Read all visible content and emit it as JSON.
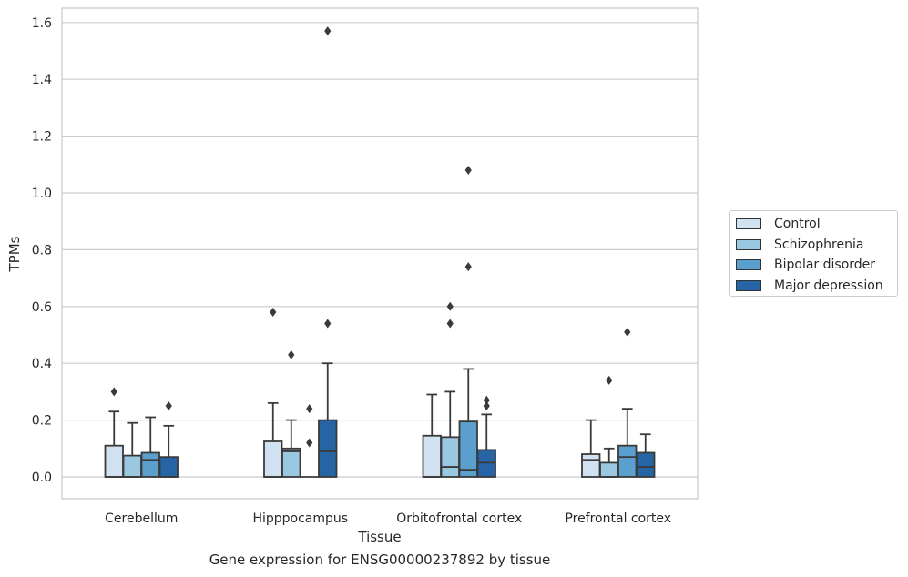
{
  "chart_data": {
    "type": "boxplot",
    "title": "",
    "caption": "Gene expression for ENSG00000237892 by tissue",
    "xlabel": "Tissue",
    "ylabel": "TPMs",
    "ylim": [
      -0.075,
      1.65
    ],
    "yticks": [
      "0.0",
      "0.2",
      "0.4",
      "0.6",
      "0.8",
      "1.0",
      "1.2",
      "1.4",
      "1.6"
    ],
    "grid": "horizontal",
    "legend_position": "right",
    "categories": [
      "Cerebellum",
      "Hipppocampus",
      "Orbitofrontal cortex",
      "Prefrontal cortex"
    ],
    "series": [
      {
        "name": "Control",
        "color": "#d0e1f2",
        "boxes": [
          {
            "whislo": 0.0,
            "q1": 0.0,
            "med": 0.0,
            "q3": 0.11,
            "whishi": 0.23,
            "fliers": [
              0.3
            ]
          },
          {
            "whislo": 0.0,
            "q1": 0.0,
            "med": 0.0,
            "q3": 0.125,
            "whishi": 0.26,
            "fliers": [
              0.58
            ]
          },
          {
            "whislo": 0.0,
            "q1": 0.0,
            "med": 0.0,
            "q3": 0.145,
            "whishi": 0.29,
            "fliers": []
          },
          {
            "whislo": 0.0,
            "q1": 0.0,
            "med": 0.06,
            "q3": 0.08,
            "whishi": 0.2,
            "fliers": []
          }
        ]
      },
      {
        "name": "Schizophrenia",
        "color": "#9ac8e0",
        "boxes": [
          {
            "whislo": 0.0,
            "q1": 0.0,
            "med": 0.0,
            "q3": 0.075,
            "whishi": 0.19,
            "fliers": []
          },
          {
            "whislo": 0.0,
            "q1": 0.0,
            "med": 0.09,
            "q3": 0.1,
            "whishi": 0.2,
            "fliers": [
              0.43
            ]
          },
          {
            "whislo": 0.0,
            "q1": 0.0,
            "med": 0.035,
            "q3": 0.14,
            "whishi": 0.3,
            "fliers": [
              0.54,
              0.6
            ]
          },
          {
            "whislo": 0.0,
            "q1": 0.0,
            "med": 0.0,
            "q3": 0.05,
            "whishi": 0.1,
            "fliers": [
              0.34
            ]
          }
        ]
      },
      {
        "name": "Bipolar disorder",
        "color": "#5a9fcd",
        "boxes": [
          {
            "whislo": 0.0,
            "q1": 0.0,
            "med": 0.06,
            "q3": 0.085,
            "whishi": 0.21,
            "fliers": []
          },
          {
            "whislo": 0.0,
            "q1": 0.0,
            "med": 0.0,
            "q3": 0.0,
            "whishi": 0.0,
            "fliers": [
              0.12,
              0.24
            ]
          },
          {
            "whislo": 0.0,
            "q1": 0.0,
            "med": 0.025,
            "q3": 0.195,
            "whishi": 0.38,
            "fliers": [
              0.74,
              1.08
            ]
          },
          {
            "whislo": 0.0,
            "q1": 0.0,
            "med": 0.07,
            "q3": 0.11,
            "whishi": 0.24,
            "fliers": [
              0.51
            ]
          }
        ]
      },
      {
        "name": "Major depression",
        "color": "#2565a6",
        "boxes": [
          {
            "whislo": 0.0,
            "q1": 0.0,
            "med": 0.0,
            "q3": 0.07,
            "whishi": 0.18,
            "fliers": [
              0.25
            ]
          },
          {
            "whislo": 0.0,
            "q1": 0.0,
            "med": 0.09,
            "q3": 0.2,
            "whishi": 0.4,
            "fliers": [
              0.54,
              1.57
            ]
          },
          {
            "whislo": 0.0,
            "q1": 0.0,
            "med": 0.05,
            "q3": 0.095,
            "whishi": 0.22,
            "fliers": [
              0.25,
              0.27
            ]
          },
          {
            "whislo": 0.0,
            "q1": 0.0,
            "med": 0.035,
            "q3": 0.085,
            "whishi": 0.15,
            "fliers": []
          }
        ]
      }
    ]
  }
}
